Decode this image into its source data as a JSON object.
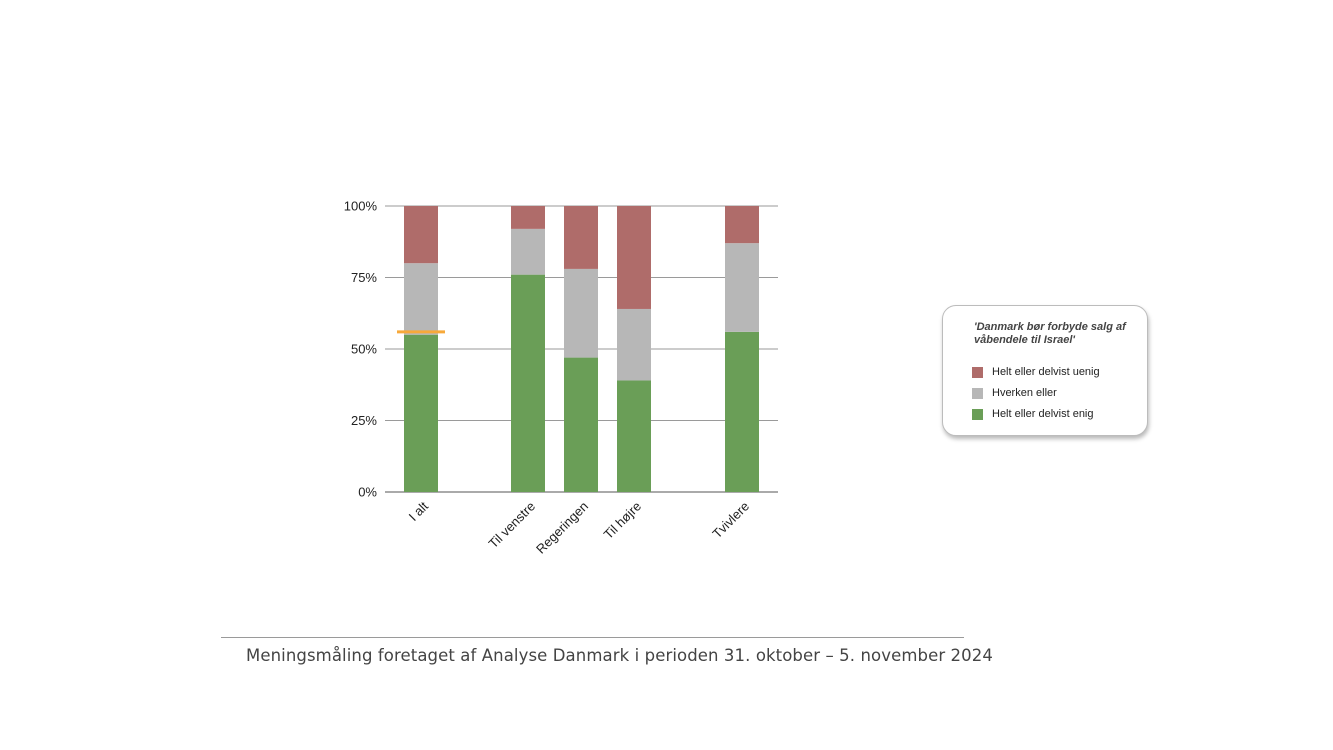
{
  "chart_data": {
    "type": "bar",
    "stacked": true,
    "categories": [
      "I alt",
      "Til venstre",
      "Regeringen",
      "Til højre",
      "Tvivlere"
    ],
    "series": [
      {
        "name": "Helt eller delvist enig",
        "values": [
          55,
          76,
          47,
          39,
          56
        ],
        "color": "#6a9e57"
      },
      {
        "name": "Hverken eller",
        "values": [
          25,
          16,
          31,
          25,
          31
        ],
        "color": "#b7b7b7"
      },
      {
        "name": "Helt eller delvist uenig",
        "values": [
          20,
          8,
          22,
          36,
          13
        ],
        "color": "#af6c6a"
      }
    ],
    "yticks": [
      "0%",
      "25%",
      "50%",
      "75%",
      "100%"
    ],
    "ylim": [
      0,
      100
    ],
    "grid": true,
    "marker": {
      "category": "I alt",
      "value": 56,
      "color": "#f7a93a"
    }
  },
  "legend": {
    "title": "'Danmark bør forbyde salg af våbendele til Israel'",
    "items": [
      {
        "label": "Helt eller delvist uenig",
        "color": "#af6c6a"
      },
      {
        "label": "Hverken eller",
        "color": "#b7b7b7"
      },
      {
        "label": "Helt eller delvist enig",
        "color": "#6a9e57"
      }
    ]
  },
  "footer": {
    "text": "Meningsmåling foretaget af Analyse Danmark i perioden 31. oktober – 5. november 2024"
  }
}
